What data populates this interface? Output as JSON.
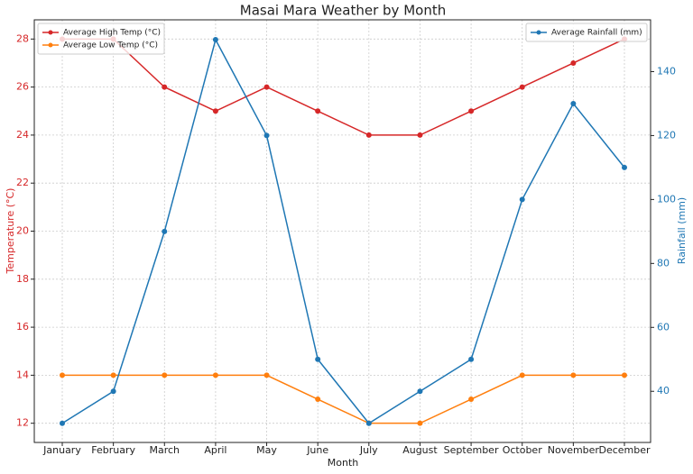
{
  "chart_data": {
    "type": "line",
    "title": "Masai Mara Weather by Month",
    "x_label": "Month",
    "y_label": "Temperature (°C)",
    "y2_label": "Rainfall (mm)",
    "y_label_color": "#d62728",
    "y2_label_color": "#1f77b4",
    "categories": [
      "January",
      "February",
      "March",
      "April",
      "May",
      "June",
      "July",
      "August",
      "September",
      "October",
      "November",
      "December"
    ],
    "series": [
      {
        "name": "Average High Temp (°C)",
        "color": "#d62728",
        "values": [
          28,
          28,
          26,
          25,
          26,
          25,
          24,
          24,
          25,
          26,
          27,
          28
        ]
      },
      {
        "name": "Average Low Temp (°C)",
        "color": "#ff7f0e",
        "values": [
          14,
          14,
          14,
          14,
          14,
          13,
          12,
          12,
          13,
          14,
          14,
          14
        ]
      },
      {
        "name": "Average Rainfall (mm)",
        "color": "#1f77b4",
        "axis": "y2",
        "values": [
          30,
          40,
          90,
          150,
          120,
          50,
          30,
          40,
          50,
          100,
          130,
          110
        ]
      }
    ],
    "ylim": [
      11.2,
      28.8
    ],
    "yticks": [
      12,
      14,
      16,
      18,
      20,
      22,
      24,
      26,
      28
    ],
    "y2lim": [
      24,
      156.2
    ],
    "y2ticks": [
      40,
      60,
      80,
      100,
      120,
      140
    ],
    "grid": true,
    "legend": "upper left",
    "legend2": "upper right"
  }
}
